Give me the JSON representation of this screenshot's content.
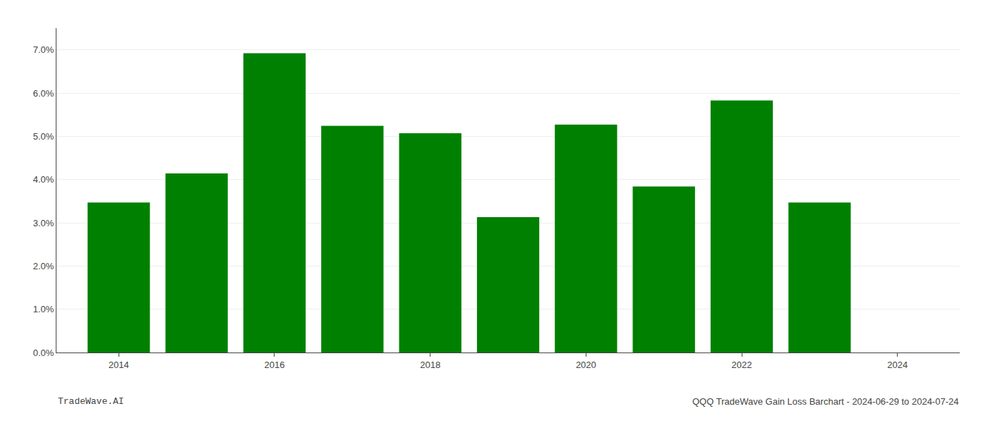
{
  "chart_data": {
    "type": "bar",
    "x": [
      2014,
      2015,
      2016,
      2017,
      2018,
      2019,
      2020,
      2021,
      2022,
      2023
    ],
    "values": [
      0.0347,
      0.0414,
      0.0692,
      0.0524,
      0.0507,
      0.0313,
      0.0527,
      0.0384,
      0.0583,
      0.0347
    ],
    "color": "#008000",
    "xlim": [
      2013.2,
      2024.8
    ],
    "xticks": [
      2014,
      2016,
      2018,
      2020,
      2022,
      2024
    ],
    "ylim": [
      0.0,
      0.075
    ],
    "yticks": [
      {
        "value": 0.0,
        "label": "0.0%"
      },
      {
        "value": 0.01,
        "label": "1.0%"
      },
      {
        "value": 0.02,
        "label": "2.0%"
      },
      {
        "value": 0.03,
        "label": "3.0%"
      },
      {
        "value": 0.04,
        "label": "4.0%"
      },
      {
        "value": 0.05,
        "label": "5.0%"
      },
      {
        "value": 0.06,
        "label": "6.0%"
      },
      {
        "value": 0.07,
        "label": "7.0%"
      }
    ],
    "grid": "y",
    "annotations": [
      "TradeWave.AI",
      "QQQ TradeWave Gain Loss Barchart - 2024-06-29 to 2024-07-24"
    ]
  }
}
